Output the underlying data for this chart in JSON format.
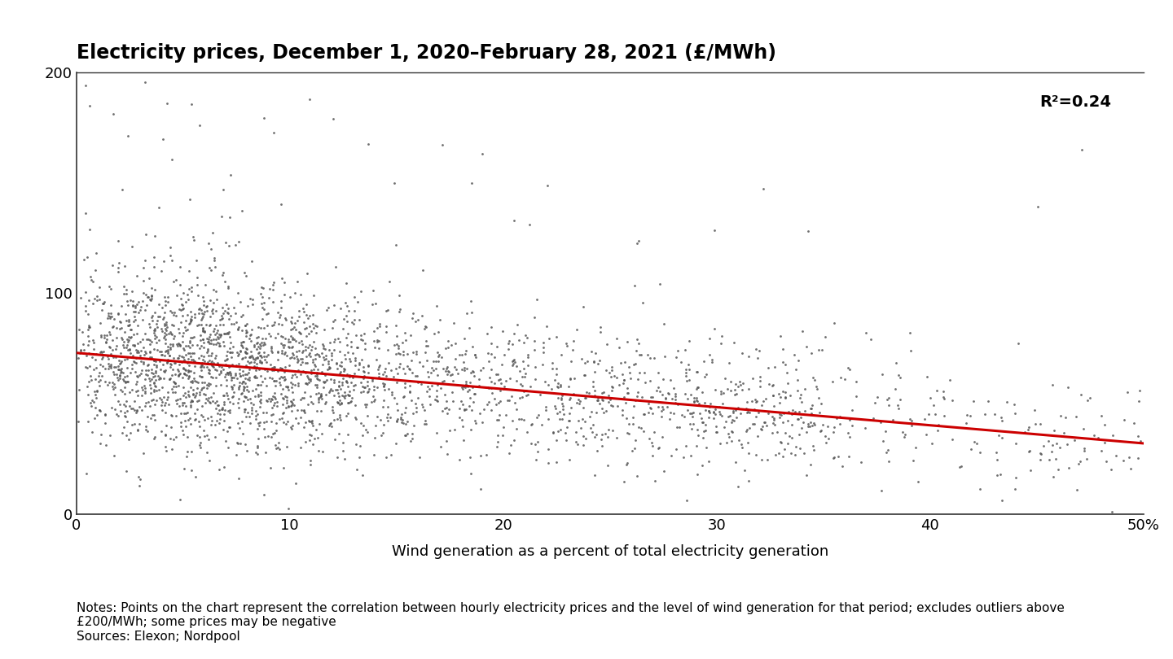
{
  "title": "Electricity prices, December 1, 2020–February 28, 2021 (£/MWh)",
  "xlabel": "Wind generation as a percent of total electricity generation",
  "xlim": [
    0,
    50
  ],
  "ylim": [
    0,
    200
  ],
  "xticks": [
    0,
    10,
    20,
    30,
    40,
    50
  ],
  "yticks": [
    0,
    100,
    200
  ],
  "r_squared": "R²=0.24",
  "scatter_color": "#555555",
  "scatter_alpha": 0.85,
  "scatter_size": 4,
  "line_color": "#cc0000",
  "line_width": 2.2,
  "regression_intercept": 73.0,
  "regression_slope": -0.82,
  "notes": "Notes: Points on the chart represent the correlation between hourly electricity prices and the level of wind generation for that period; excludes outliers above\n£200/MWh; some prices may be negative\nSources: Elexon; Nordpool",
  "title_fontsize": 17,
  "label_fontsize": 13,
  "tick_fontsize": 13,
  "note_fontsize": 11,
  "annotation_fontsize": 14,
  "background_color": "#ffffff",
  "n_points": 3000,
  "seed": 42
}
